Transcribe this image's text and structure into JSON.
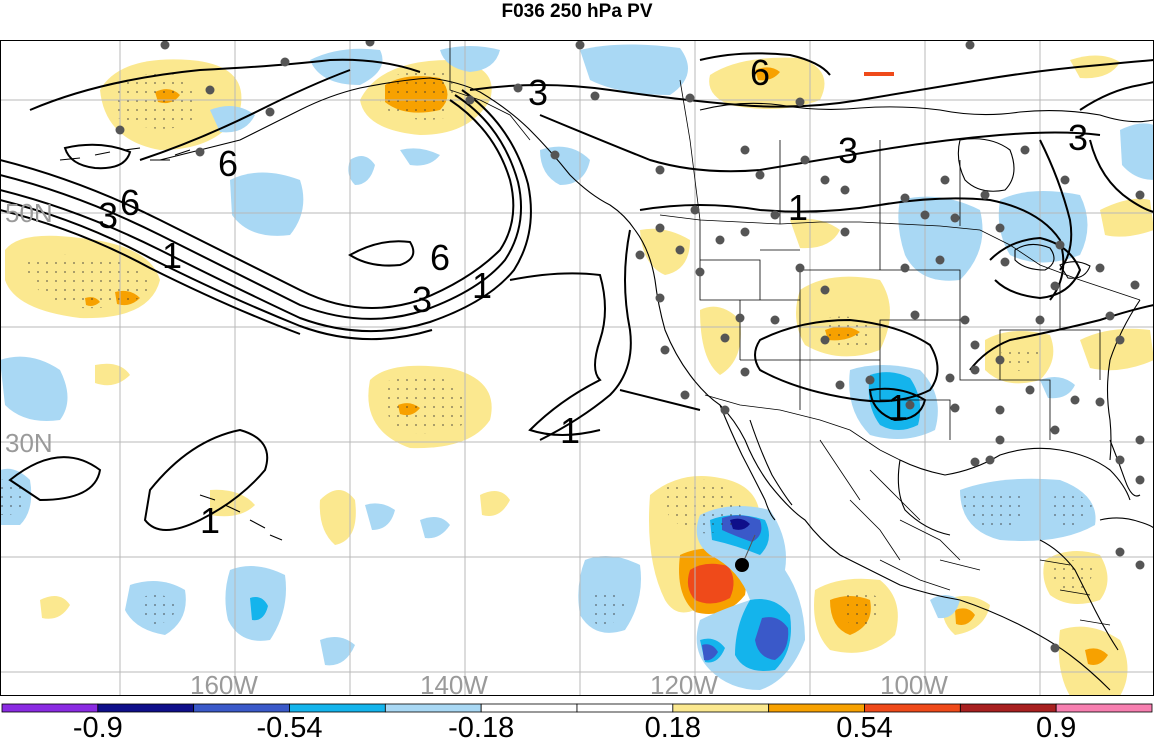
{
  "title": "F036 250 hPa PV",
  "map": {
    "lon_labels": [
      "160W",
      "140W",
      "120W",
      "100W"
    ],
    "lat_labels": [
      "50N",
      "30N"
    ],
    "contour_labels": [
      "3",
      "3",
      "6",
      "3",
      "6",
      "1",
      "6",
      "3",
      "1",
      "1",
      "1",
      "1",
      "1",
      "3",
      "6"
    ],
    "colors": {
      "light_yellow": "#fbe88f",
      "orange": "#f7a100",
      "red_orange": "#ef4a1a",
      "light_blue": "#a9d8f4",
      "cyan": "#14b4ec",
      "mid_blue": "#3a59c9",
      "dark_blue": "#0f0f8a"
    }
  },
  "colorbar": {
    "colors": [
      "#8a2be2",
      "#0f0f8a",
      "#3a59c9",
      "#14b4ec",
      "#a9d8f4",
      "#ffffff",
      "#ffffff",
      "#fbe88f",
      "#f7a100",
      "#ef4a1a",
      "#a82020",
      "#f77fb0"
    ],
    "tick_labels": [
      "-0.9",
      "-0.54",
      "-0.18",
      "0.18",
      "0.54",
      "0.9"
    ]
  }
}
